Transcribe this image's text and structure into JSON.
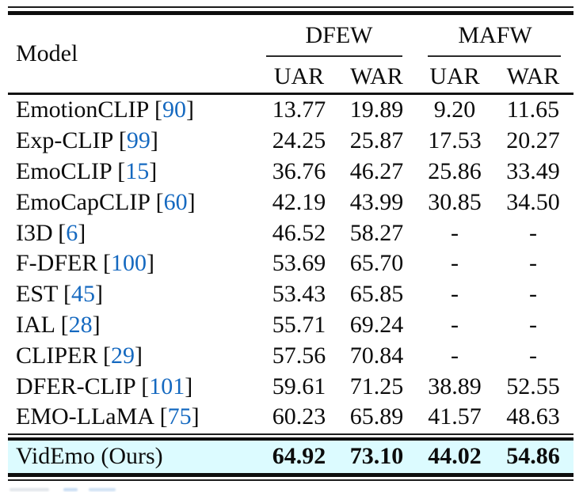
{
  "table": {
    "header": {
      "model_label": "Model",
      "groups": [
        {
          "label": "DFEW"
        },
        {
          "label": "MAFW"
        }
      ],
      "subheaders": [
        "UAR",
        "WAR",
        "UAR",
        "WAR"
      ]
    },
    "punct": {
      "open": "[",
      "close": "]"
    },
    "rows": [
      {
        "model": "EmotionCLIP",
        "cite": "90",
        "values": [
          "13.77",
          "19.89",
          "9.20",
          "11.65"
        ]
      },
      {
        "model": "Exp-CLIP",
        "cite": "99",
        "values": [
          "24.25",
          "25.87",
          "17.53",
          "20.27"
        ]
      },
      {
        "model": "EmoCLIP",
        "cite": "15",
        "values": [
          "36.76",
          "46.27",
          "25.86",
          "33.49"
        ]
      },
      {
        "model": "EmoCapCLIP",
        "cite": "60",
        "values": [
          "42.19",
          "43.99",
          "30.85",
          "34.50"
        ]
      },
      {
        "model": "I3D",
        "cite": "6",
        "values": [
          "46.52",
          "58.27",
          "-",
          "-"
        ]
      },
      {
        "model": "F-DFER",
        "cite": "100",
        "values": [
          "53.69",
          "65.70",
          "-",
          "-"
        ]
      },
      {
        "model": "EST",
        "cite": "45",
        "values": [
          "53.43",
          "65.85",
          "-",
          "-"
        ]
      },
      {
        "model": "IAL",
        "cite": "28",
        "values": [
          "55.71",
          "69.24",
          "-",
          "-"
        ]
      },
      {
        "model": "CLIPER",
        "cite": "29",
        "values": [
          "57.56",
          "70.84",
          "-",
          "-"
        ]
      },
      {
        "model": "DFER-CLIP",
        "cite": "101",
        "values": [
          "59.61",
          "71.25",
          "38.89",
          "52.55"
        ]
      },
      {
        "model": "EMO-LLaMA",
        "cite": "75",
        "values": [
          "60.23",
          "65.89",
          "41.57",
          "48.63"
        ]
      }
    ],
    "highlight_row": {
      "model": "VidEmo (Ours)",
      "values": [
        "64.92",
        "73.10",
        "44.02",
        "54.86"
      ]
    },
    "colors": {
      "citation": "#1569c0",
      "highlight": "#dcfbff",
      "rule": "#111111"
    }
  }
}
